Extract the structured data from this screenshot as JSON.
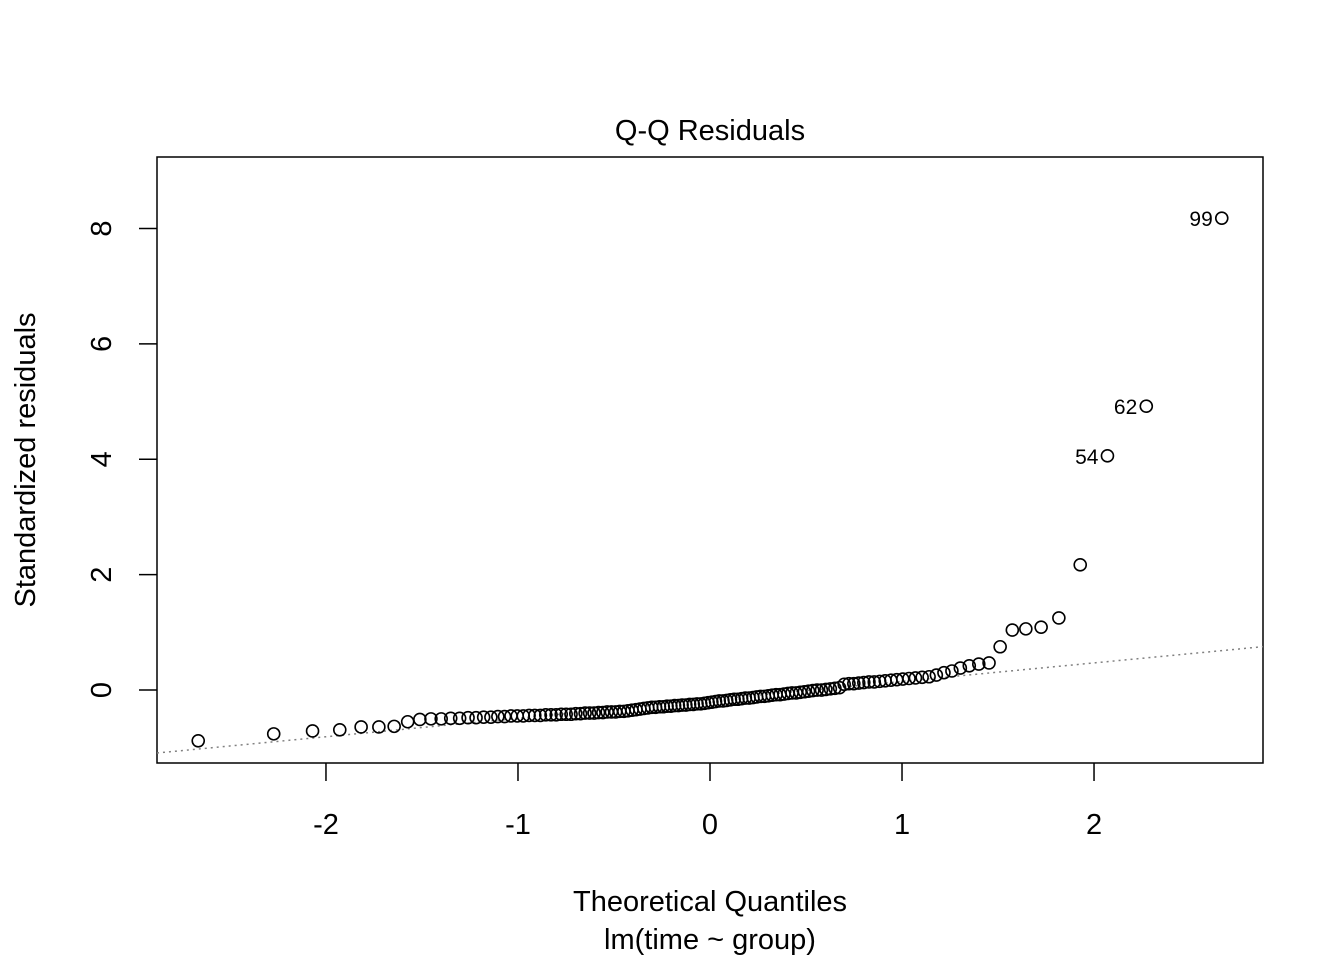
{
  "chart_data": {
    "type": "scatter",
    "title": "Q-Q Residuals",
    "xlabel": "Theoretical Quantiles",
    "sublabel": "lm(time ~ group)",
    "ylabel": "Standardized residuals",
    "xlim": [
      -2.88,
      2.88
    ],
    "ylim": [
      -1.265,
      9.24
    ],
    "x_ticks": [
      -2,
      -1,
      0,
      1,
      2
    ],
    "x_tick_labels": [
      "-2",
      "-1",
      "0",
      "1",
      "2"
    ],
    "y_ticks": [
      0,
      2,
      4,
      6,
      8
    ],
    "y_tick_labels": [
      "0",
      "2",
      "4",
      "6",
      "8"
    ],
    "grid": false,
    "point_style": "open-circle",
    "x_quantiles": "normal theoretical quantiles of ppoints(n)",
    "sample_quantiles": [
      -0.88,
      -0.76,
      -0.71,
      -0.69,
      -0.64,
      -0.64,
      -0.63,
      -0.55,
      -0.51,
      -0.5,
      -0.5,
      -0.49,
      -0.49,
      -0.48,
      -0.48,
      -0.47,
      -0.47,
      -0.46,
      -0.46,
      -0.45,
      -0.45,
      -0.45,
      -0.44,
      -0.44,
      -0.44,
      -0.43,
      -0.43,
      -0.43,
      -0.42,
      -0.42,
      -0.42,
      -0.41,
      -0.41,
      -0.4,
      -0.4,
      -0.4,
      -0.39,
      -0.39,
      -0.38,
      -0.38,
      -0.38,
      -0.37,
      -0.37,
      -0.36,
      -0.35,
      -0.34,
      -0.33,
      -0.32,
      -0.31,
      -0.3,
      -0.3,
      -0.29,
      -0.29,
      -0.28,
      -0.28,
      -0.27,
      -0.27,
      -0.26,
      -0.26,
      -0.25,
      -0.25,
      -0.24,
      -0.24,
      -0.23,
      -0.22,
      -0.21,
      -0.2,
      -0.19,
      -0.19,
      -0.18,
      -0.17,
      -0.16,
      -0.16,
      -0.15,
      -0.14,
      -0.14,
      -0.13,
      -0.12,
      -0.11,
      -0.11,
      -0.1,
      -0.09,
      -0.08,
      -0.08,
      -0.07,
      -0.06,
      -0.05,
      -0.05,
      -0.04,
      -0.03,
      -0.02,
      -0.01,
      0.0,
      0.0,
      0.01,
      0.02,
      0.03,
      0.04,
      0.1,
      0.11,
      0.11,
      0.12,
      0.13,
      0.14,
      0.14,
      0.15,
      0.16,
      0.17,
      0.18,
      0.19,
      0.2,
      0.21,
      0.22,
      0.23,
      0.26,
      0.3,
      0.33,
      0.38,
      0.42,
      0.45,
      0.47,
      0.75,
      1.04,
      1.06,
      1.09,
      1.25,
      2.17,
      4.06,
      4.92,
      8.18
    ],
    "point_labels": [
      {
        "rank_from_top": 1,
        "text": "99"
      },
      {
        "rank_from_top": 2,
        "text": "62"
      },
      {
        "rank_from_top": 3,
        "text": "54"
      }
    ],
    "reference_line": {
      "intercept": -0.17,
      "slope": 0.32,
      "style": "dotted",
      "color": "#808080"
    }
  }
}
